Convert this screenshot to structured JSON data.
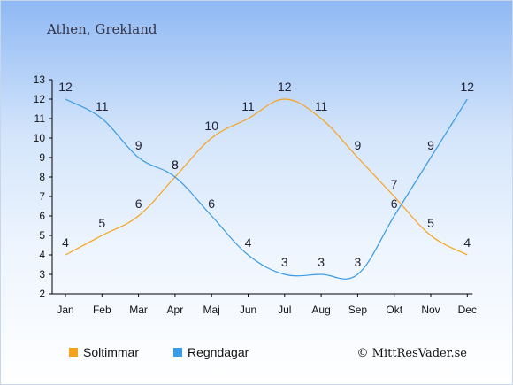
{
  "chart_data": {
    "type": "line",
    "title": "Athen, Grekland",
    "categories": [
      "Jan",
      "Feb",
      "Mar",
      "Apr",
      "Maj",
      "Jun",
      "Jul",
      "Aug",
      "Sep",
      "Okt",
      "Nov",
      "Dec"
    ],
    "ylim": [
      2,
      13
    ],
    "yticks": [
      2,
      3,
      4,
      5,
      6,
      7,
      8,
      9,
      10,
      11,
      12,
      13
    ],
    "series": [
      {
        "name": "Soltimmar",
        "color": "#f7a21b",
        "values": [
          4,
          5,
          6,
          8,
          10,
          11,
          12,
          11,
          9,
          7,
          5,
          4
        ]
      },
      {
        "name": "Regndagar",
        "color": "#3a9be6",
        "values": [
          12,
          11,
          9,
          8,
          6,
          4,
          3,
          3,
          3,
          6,
          9,
          12
        ]
      }
    ],
    "legend_position": "bottom-left",
    "grid": false
  },
  "credit": "© MittResVader.se"
}
